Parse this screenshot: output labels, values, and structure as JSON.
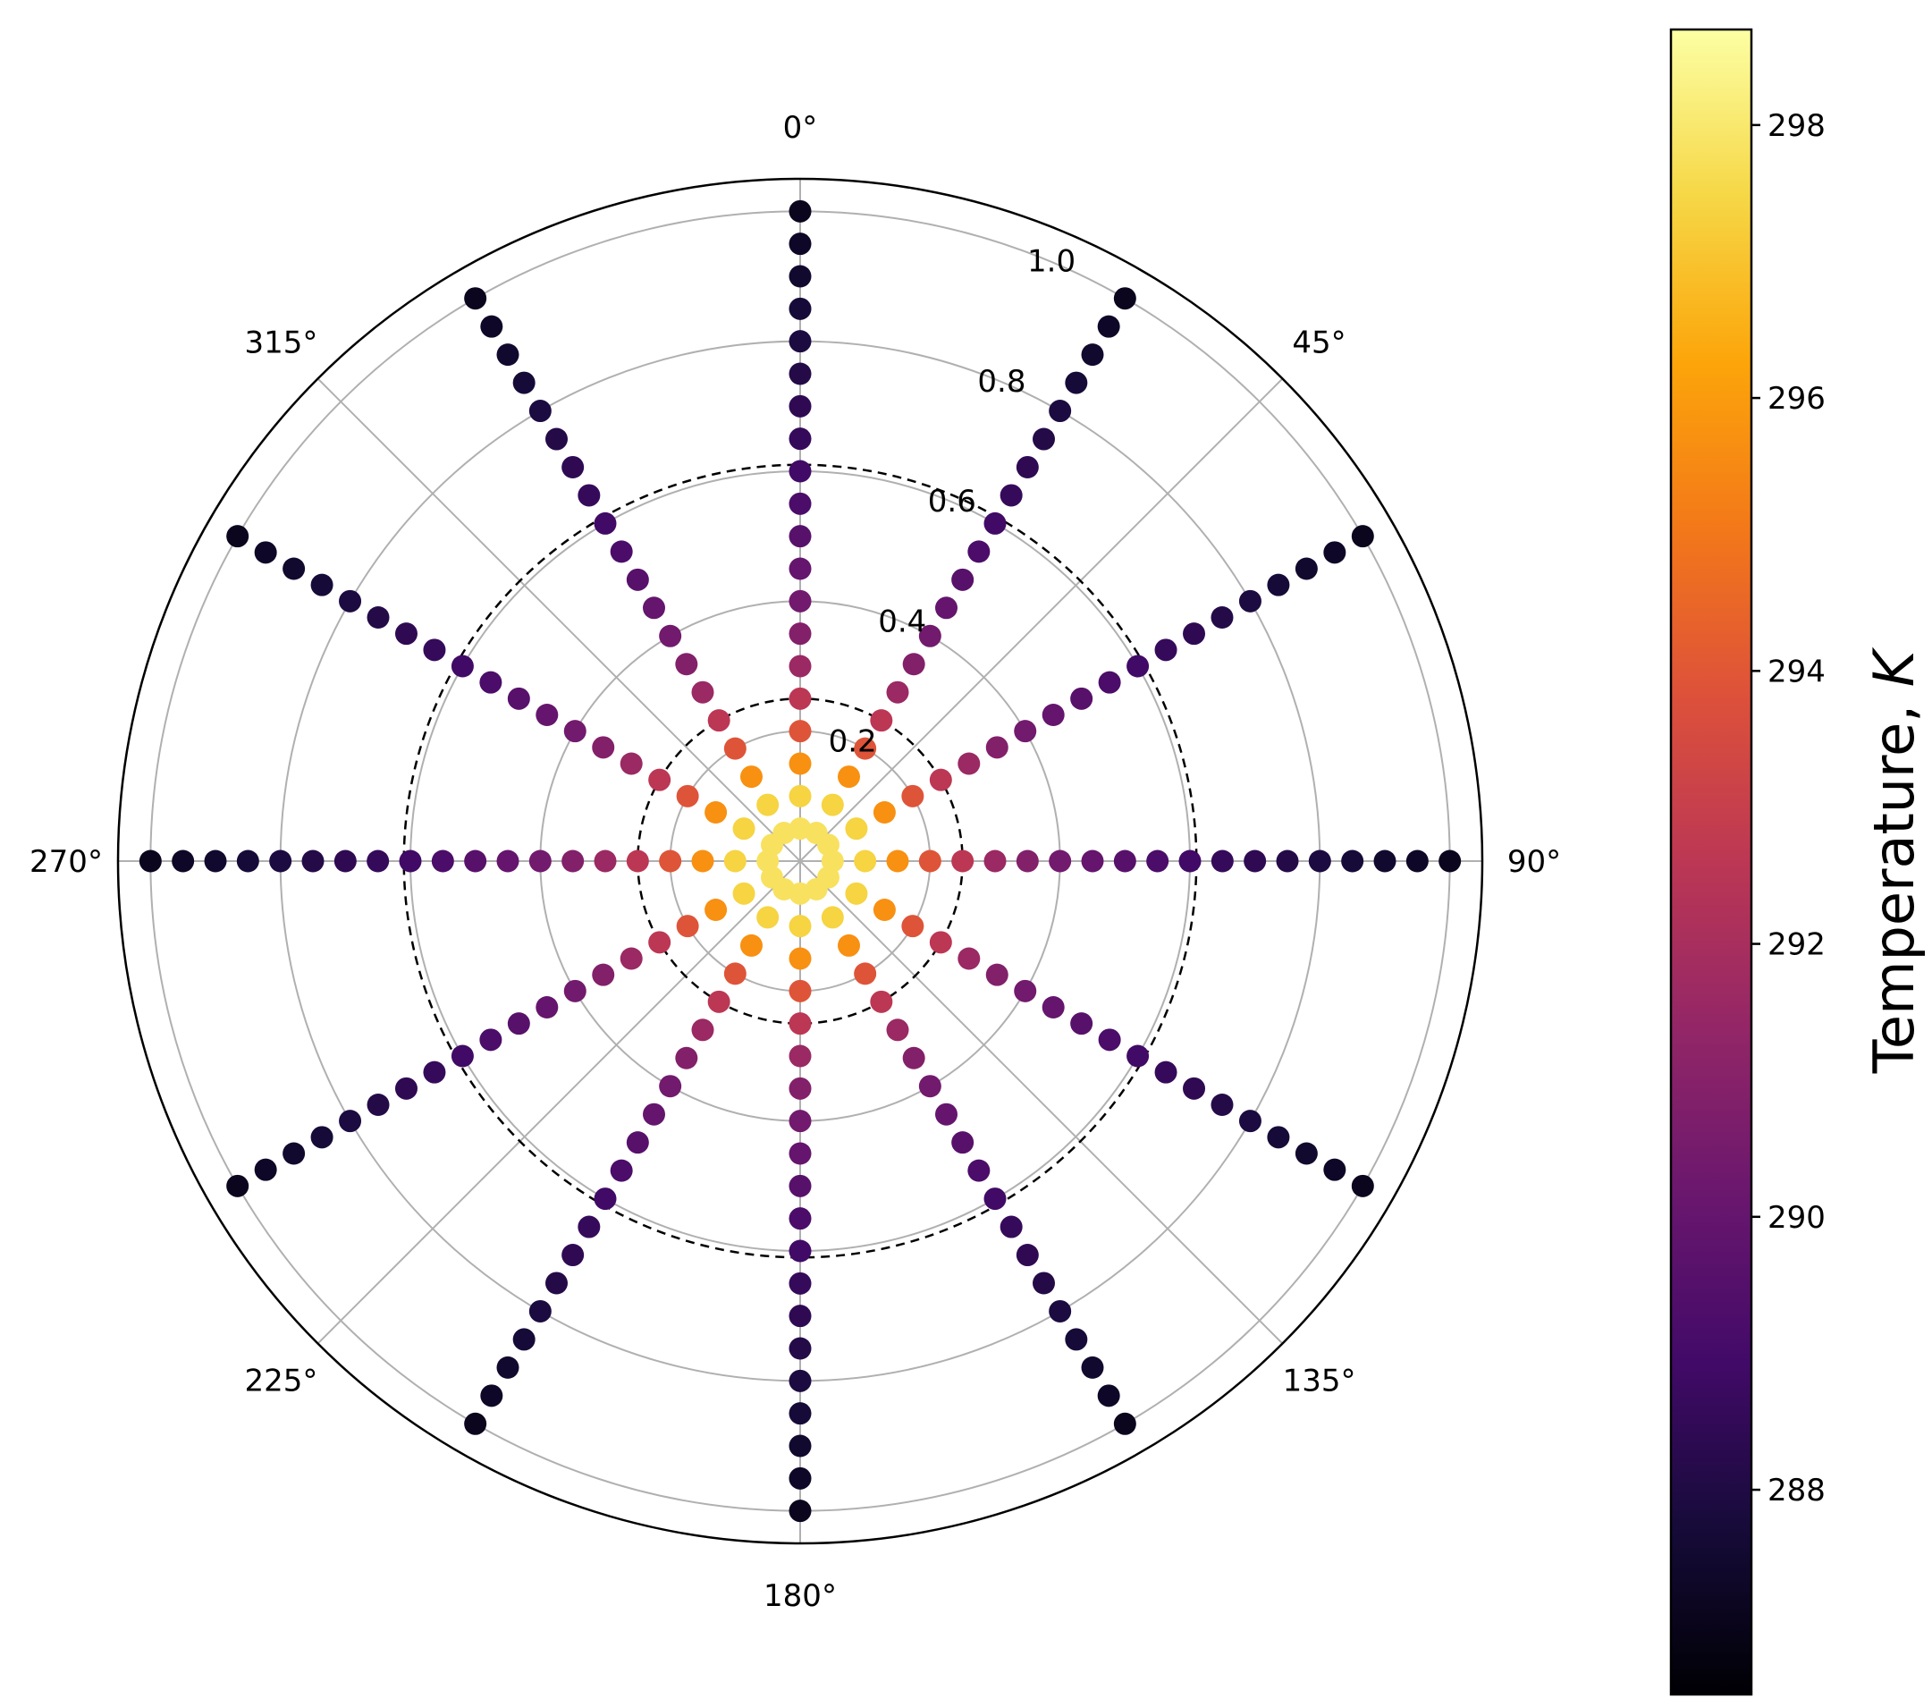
{
  "chart_data": {
    "type": "scatter",
    "projection": "polar",
    "theta_zero_location": "top",
    "theta_direction": "clockwise",
    "theta_ticks": [
      {
        "deg": 0,
        "label": "0°"
      },
      {
        "deg": 45,
        "label": "45°"
      },
      {
        "deg": 90,
        "label": "90°"
      },
      {
        "deg": 135,
        "label": "135°"
      },
      {
        "deg": 180,
        "label": "180°"
      },
      {
        "deg": 225,
        "label": "225°"
      },
      {
        "deg": 270,
        "label": "270°"
      },
      {
        "deg": 315,
        "label": "315°"
      }
    ],
    "r_ticks": [
      {
        "value": 0.2,
        "label": "0.2"
      },
      {
        "value": 0.4,
        "label": "0.4"
      },
      {
        "value": 0.6,
        "label": "0.6"
      },
      {
        "value": 0.8,
        "label": "0.8"
      },
      {
        "value": 1.0,
        "label": "1.0"
      }
    ],
    "rlim": [
      0,
      1.05
    ],
    "grid": true,
    "dashed_reference_circles": [
      0.25,
      0.61
    ],
    "spoke_angles_deg": [
      0,
      45,
      90,
      135,
      180,
      225,
      270,
      315
    ],
    "series": [
      {
        "angle_deg": 0,
        "r": [
          0.05,
          0.1,
          0.15,
          0.2,
          0.25,
          0.3,
          0.35,
          0.4,
          0.45,
          0.5,
          0.55,
          0.6,
          0.65,
          0.7,
          0.75,
          0.8,
          0.85,
          0.9,
          0.95,
          1.0
        ],
        "temperature": [
          297.8,
          297.4,
          295.7,
          293.9,
          292.6,
          291.6,
          290.9,
          290.4,
          290.0,
          289.6,
          289.2,
          288.9,
          288.6,
          288.4,
          288.1,
          287.9,
          287.7,
          287.5,
          287.3,
          287.1
        ]
      },
      {
        "angle_deg": 30,
        "r": [
          0.05,
          0.1,
          0.15,
          0.2,
          0.25,
          0.3,
          0.35,
          0.4,
          0.45,
          0.5,
          0.55,
          0.6,
          0.65,
          0.7,
          0.75,
          0.8,
          0.85,
          0.9,
          0.95,
          1.0
        ],
        "temperature": [
          297.8,
          297.4,
          295.7,
          293.9,
          292.6,
          291.6,
          290.9,
          290.4,
          290.0,
          289.6,
          289.2,
          288.9,
          288.6,
          288.4,
          288.1,
          287.9,
          287.7,
          287.5,
          287.3,
          287.1
        ]
      },
      {
        "angle_deg": 60,
        "r": [
          0.05,
          0.1,
          0.15,
          0.2,
          0.25,
          0.3,
          0.35,
          0.4,
          0.45,
          0.5,
          0.55,
          0.6,
          0.65,
          0.7,
          0.75,
          0.8,
          0.85,
          0.9,
          0.95,
          1.0
        ],
        "temperature": [
          297.8,
          297.4,
          295.7,
          293.9,
          292.6,
          291.6,
          290.9,
          290.4,
          290.0,
          289.6,
          289.2,
          288.9,
          288.6,
          288.4,
          288.1,
          287.9,
          287.7,
          287.5,
          287.3,
          287.1
        ]
      },
      {
        "angle_deg": 90,
        "r": [
          0.05,
          0.1,
          0.15,
          0.2,
          0.25,
          0.3,
          0.35,
          0.4,
          0.45,
          0.5,
          0.55,
          0.6,
          0.65,
          0.7,
          0.75,
          0.8,
          0.85,
          0.9,
          0.95,
          1.0
        ],
        "temperature": [
          297.8,
          297.4,
          295.7,
          293.9,
          292.6,
          291.6,
          290.9,
          290.4,
          290.0,
          289.6,
          289.2,
          288.9,
          288.6,
          288.4,
          288.1,
          287.9,
          287.7,
          287.5,
          287.3,
          287.1
        ]
      },
      {
        "angle_deg": 120,
        "r": [
          0.05,
          0.1,
          0.15,
          0.2,
          0.25,
          0.3,
          0.35,
          0.4,
          0.45,
          0.5,
          0.55,
          0.6,
          0.65,
          0.7,
          0.75,
          0.8,
          0.85,
          0.9,
          0.95,
          1.0
        ],
        "temperature": [
          297.8,
          297.4,
          295.7,
          293.9,
          292.6,
          291.6,
          290.9,
          290.4,
          290.0,
          289.6,
          289.2,
          288.9,
          288.6,
          288.4,
          288.1,
          287.9,
          287.7,
          287.5,
          287.3,
          287.1
        ]
      },
      {
        "angle_deg": 150,
        "r": [
          0.05,
          0.1,
          0.15,
          0.2,
          0.25,
          0.3,
          0.35,
          0.4,
          0.45,
          0.5,
          0.55,
          0.6,
          0.65,
          0.7,
          0.75,
          0.8,
          0.85,
          0.9,
          0.95,
          1.0
        ],
        "temperature": [
          297.8,
          297.4,
          295.7,
          293.9,
          292.6,
          291.6,
          290.9,
          290.4,
          290.0,
          289.6,
          289.2,
          288.9,
          288.6,
          288.4,
          288.1,
          287.9,
          287.7,
          287.5,
          287.3,
          287.1
        ]
      },
      {
        "angle_deg": 180,
        "r": [
          0.05,
          0.1,
          0.15,
          0.2,
          0.25,
          0.3,
          0.35,
          0.4,
          0.45,
          0.5,
          0.55,
          0.6,
          0.65,
          0.7,
          0.75,
          0.8,
          0.85,
          0.9,
          0.95,
          1.0
        ],
        "temperature": [
          297.8,
          297.4,
          295.7,
          293.9,
          292.6,
          291.6,
          290.9,
          290.4,
          290.0,
          289.6,
          289.2,
          288.9,
          288.6,
          288.4,
          288.1,
          287.9,
          287.7,
          287.5,
          287.3,
          287.1
        ]
      },
      {
        "angle_deg": 210,
        "r": [
          0.05,
          0.1,
          0.15,
          0.2,
          0.25,
          0.3,
          0.35,
          0.4,
          0.45,
          0.5,
          0.55,
          0.6,
          0.65,
          0.7,
          0.75,
          0.8,
          0.85,
          0.9,
          0.95,
          1.0
        ],
        "temperature": [
          297.8,
          297.4,
          295.7,
          293.9,
          292.6,
          291.6,
          290.9,
          290.4,
          290.0,
          289.6,
          289.2,
          288.9,
          288.6,
          288.4,
          288.1,
          287.9,
          287.7,
          287.5,
          287.3,
          287.1
        ]
      },
      {
        "angle_deg": 240,
        "r": [
          0.05,
          0.1,
          0.15,
          0.2,
          0.25,
          0.3,
          0.35,
          0.4,
          0.45,
          0.5,
          0.55,
          0.6,
          0.65,
          0.7,
          0.75,
          0.8,
          0.85,
          0.9,
          0.95,
          1.0
        ],
        "temperature": [
          297.8,
          297.4,
          295.7,
          293.9,
          292.6,
          291.6,
          290.9,
          290.4,
          290.0,
          289.6,
          289.2,
          288.9,
          288.6,
          288.4,
          288.1,
          287.9,
          287.7,
          287.5,
          287.3,
          287.1
        ]
      },
      {
        "angle_deg": 270,
        "r": [
          0.05,
          0.1,
          0.15,
          0.2,
          0.25,
          0.3,
          0.35,
          0.4,
          0.45,
          0.5,
          0.55,
          0.6,
          0.65,
          0.7,
          0.75,
          0.8,
          0.85,
          0.9,
          0.95,
          1.0
        ],
        "temperature": [
          297.8,
          297.4,
          295.7,
          293.9,
          292.6,
          291.6,
          290.9,
          290.4,
          290.0,
          289.6,
          289.2,
          288.9,
          288.6,
          288.4,
          288.1,
          287.9,
          287.7,
          287.5,
          287.3,
          287.1
        ]
      },
      {
        "angle_deg": 300,
        "r": [
          0.05,
          0.1,
          0.15,
          0.2,
          0.25,
          0.3,
          0.35,
          0.4,
          0.45,
          0.5,
          0.55,
          0.6,
          0.65,
          0.7,
          0.75,
          0.8,
          0.85,
          0.9,
          0.95,
          1.0
        ],
        "temperature": [
          297.8,
          297.4,
          295.7,
          293.9,
          292.6,
          291.6,
          290.9,
          290.4,
          290.0,
          289.6,
          289.2,
          288.9,
          288.6,
          288.4,
          288.1,
          287.9,
          287.7,
          287.5,
          287.3,
          287.1
        ]
      },
      {
        "angle_deg": 330,
        "r": [
          0.05,
          0.1,
          0.15,
          0.2,
          0.25,
          0.3,
          0.35,
          0.4,
          0.45,
          0.5,
          0.55,
          0.6,
          0.65,
          0.7,
          0.75,
          0.8,
          0.85,
          0.9,
          0.95,
          1.0
        ],
        "temperature": [
          297.8,
          297.4,
          295.7,
          293.9,
          292.6,
          291.6,
          290.9,
          290.4,
          290.0,
          289.6,
          289.2,
          288.9,
          288.6,
          288.4,
          288.1,
          287.9,
          287.7,
          287.5,
          287.3,
          287.1
        ]
      }
    ],
    "colorbar": {
      "label": "Temperature, ",
      "label_italic": "K",
      "colormap": "inferno",
      "vmin": 286.5,
      "vmax": 298.7,
      "ticks": [
        {
          "value": 288,
          "label": "288"
        },
        {
          "value": 290,
          "label": "290"
        },
        {
          "value": 292,
          "label": "292"
        },
        {
          "value": 294,
          "label": "294"
        },
        {
          "value": 296,
          "label": "296"
        },
        {
          "value": 298,
          "label": "298"
        }
      ]
    }
  }
}
